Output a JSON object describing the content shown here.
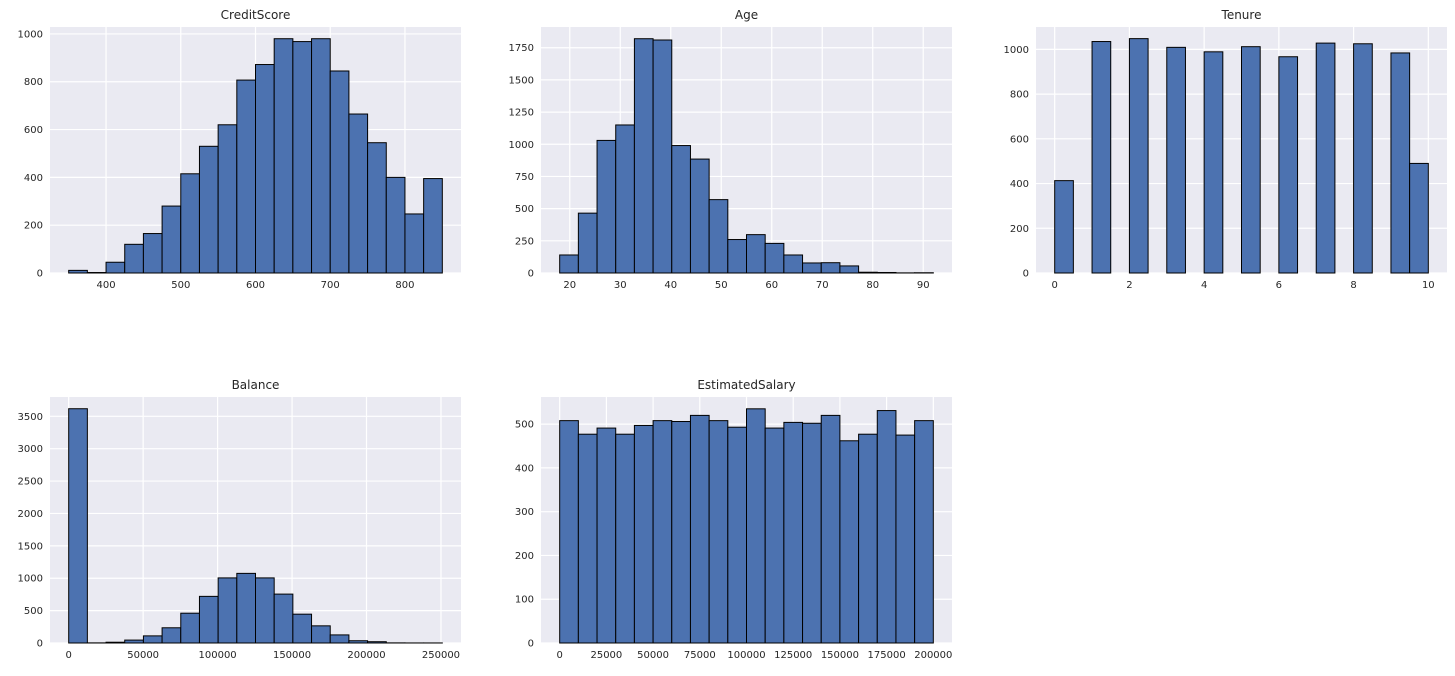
{
  "style": {
    "figure_background": "#ffffff",
    "axes_background": "#eaeaf2",
    "grid_color": "#ffffff",
    "bar_fill": "#4c72b0",
    "bar_edge": "#000000",
    "text_color": "#262626"
  },
  "chart_data": [
    {
      "type": "bar",
      "title": "CreditScore",
      "bin_start": 350,
      "bin_width": 25,
      "values": [
        11,
        2,
        45,
        120,
        165,
        280,
        415,
        530,
        620,
        807,
        872,
        980,
        968,
        980,
        845,
        665,
        545,
        400,
        247,
        395
      ],
      "xlim": [
        325,
        875
      ],
      "ylim": [
        0,
        1029
      ],
      "xticks": [
        400,
        500,
        600,
        700,
        800
      ],
      "yticks": [
        0,
        200,
        400,
        600,
        800,
        1000
      ],
      "xlabel": "",
      "ylabel": "",
      "grid": "on",
      "legend": "none"
    },
    {
      "type": "bar",
      "title": "Age",
      "bin_start": 18,
      "bin_width": 3.7,
      "values": [
        140,
        465,
        1030,
        1150,
        1820,
        1810,
        990,
        885,
        570,
        260,
        298,
        230,
        140,
        78,
        80,
        55,
        6,
        4,
        1,
        2
      ],
      "xlim": [
        14.3,
        95.7
      ],
      "ylim": [
        0,
        1911
      ],
      "xticks": [
        20,
        30,
        40,
        50,
        60,
        70,
        80,
        90
      ],
      "yticks": [
        0,
        250,
        500,
        750,
        1000,
        1250,
        1500,
        1750
      ],
      "xlabel": "",
      "ylabel": "",
      "grid": "on",
      "legend": "none"
    },
    {
      "type": "bar",
      "title": "Tenure",
      "bin_start": 0,
      "bin_width": 0.5,
      "values": [
        413,
        0,
        1035,
        0,
        1048,
        0,
        1009,
        0,
        989,
        0,
        1012,
        0,
        967,
        0,
        1028,
        0,
        1025,
        0,
        984,
        490
      ],
      "xlim": [
        -0.5,
        10.5
      ],
      "ylim": [
        0,
        1100
      ],
      "xticks": [
        0,
        2,
        4,
        6,
        8,
        10
      ],
      "yticks": [
        0,
        200,
        400,
        600,
        800,
        1000
      ],
      "xlabel": "",
      "ylabel": "",
      "grid": "on",
      "legend": "none"
    },
    {
      "type": "bar",
      "title": "Balance",
      "bin_start": 0,
      "bin_width": 12545,
      "values": [
        3617,
        2,
        12,
        45,
        110,
        235,
        460,
        720,
        1005,
        1075,
        1005,
        755,
        445,
        265,
        125,
        35,
        20,
        2,
        1,
        1
      ],
      "xlim": [
        -12545,
        263443
      ],
      "ylim": [
        0,
        3798
      ],
      "xticks": [
        0,
        50000,
        100000,
        150000,
        200000,
        250000
      ],
      "yticks": [
        0,
        500,
        1000,
        1500,
        2000,
        2500,
        3000,
        3500
      ],
      "xlabel": "",
      "ylabel": "",
      "grid": "on",
      "legend": "none"
    },
    {
      "type": "bar",
      "title": "EstimatedSalary",
      "bin_start": 0,
      "bin_width": 10000,
      "values": [
        508,
        477,
        491,
        477,
        497,
        508,
        506,
        520,
        508,
        493,
        535,
        491,
        504,
        502,
        520,
        462,
        477,
        531,
        475,
        508
      ],
      "xlim": [
        -10000,
        210000
      ],
      "ylim": [
        0,
        562
      ],
      "xticks": [
        0,
        25000,
        50000,
        75000,
        100000,
        125000,
        150000,
        175000,
        200000
      ],
      "yticks": [
        0,
        100,
        200,
        300,
        400,
        500
      ],
      "xlabel": "",
      "ylabel": "",
      "grid": "on",
      "legend": "none"
    }
  ]
}
